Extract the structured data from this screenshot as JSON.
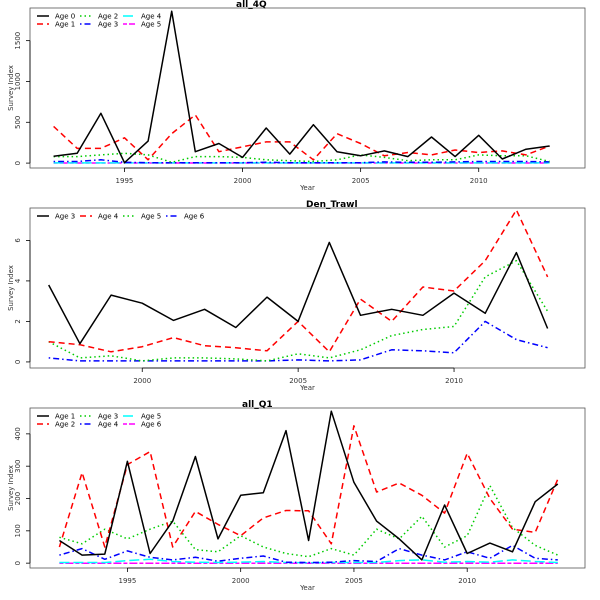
{
  "chart_data": [
    {
      "type": "line",
      "title": "all_4Q",
      "xlabel": "Year",
      "ylabel": "Survey Index",
      "xlim": [
        1991,
        2014.5
      ],
      "ylim": [
        -60,
        1900
      ],
      "xticks": [
        1995,
        2000,
        2005,
        2010
      ],
      "yticks": [
        0,
        500,
        1000,
        1500
      ],
      "legend": "top-left",
      "x": [
        1992,
        1993,
        1994,
        1995,
        1996,
        1997,
        1998,
        1999,
        2000,
        2001,
        2002,
        2003,
        2004,
        2005,
        2006,
        2007,
        2008,
        2009,
        2010,
        2011,
        2012,
        2013
      ],
      "series": [
        {
          "name": "Age 0",
          "color": "#000000",
          "dash": "solid",
          "values": [
            85,
            120,
            610,
            5,
            270,
            1860,
            140,
            240,
            70,
            430,
            110,
            470,
            140,
            90,
            150,
            80,
            320,
            80,
            340,
            50,
            170,
            210
          ]
        },
        {
          "name": "Age 1",
          "color": "#ff0000",
          "dash": "dashed",
          "values": [
            450,
            180,
            180,
            310,
            40,
            360,
            590,
            140,
            200,
            260,
            260,
            40,
            360,
            240,
            90,
            130,
            100,
            160,
            130,
            150,
            100,
            210
          ]
        },
        {
          "name": "Age 2",
          "color": "#00cc00",
          "dash": "dotted",
          "values": [
            80,
            80,
            100,
            120,
            100,
            10,
            80,
            80,
            70,
            40,
            30,
            20,
            40,
            100,
            70,
            30,
            40,
            40,
            100,
            90,
            90,
            20
          ]
        },
        {
          "name": "Age 3",
          "color": "#0000ff",
          "dash": "dotdash",
          "values": [
            20,
            20,
            40,
            10,
            5,
            5,
            5,
            5,
            5,
            10,
            5,
            5,
            5,
            5,
            15,
            10,
            10,
            15,
            20,
            20,
            20,
            15
          ]
        },
        {
          "name": "Age 4",
          "color": "#00ffff",
          "dash": "longdash",
          "values": [
            3,
            3,
            3,
            3,
            2,
            2,
            2,
            2,
            2,
            3,
            2,
            2,
            2,
            2,
            3,
            3,
            3,
            3,
            3,
            3,
            3,
            3
          ]
        },
        {
          "name": "Age 5",
          "color": "#ff00ff",
          "dash": "twodash",
          "values": [
            1,
            1,
            1,
            1,
            1,
            1,
            1,
            1,
            1,
            1,
            1,
            1,
            1,
            1,
            1,
            1,
            1,
            1,
            1,
            1,
            1,
            1
          ]
        }
      ]
    },
    {
      "type": "line",
      "title": "Den_Trawl",
      "xlabel": "Year",
      "ylabel": "Survey Index",
      "xlim": [
        1996.4,
        2014.2
      ],
      "ylim": [
        -0.3,
        7.6
      ],
      "xticks": [
        2000,
        2005,
        2010
      ],
      "yticks": [
        0,
        2,
        4,
        6
      ],
      "legend": "top-left",
      "x": [
        1997,
        1998,
        1999,
        2000,
        2001,
        2002,
        2003,
        2004,
        2005,
        2006,
        2007,
        2008,
        2009,
        2010,
        2011,
        2012,
        2013
      ],
      "series": [
        {
          "name": "Age 3",
          "color": "#000000",
          "dash": "solid",
          "values": [
            3.8,
            0.9,
            3.3,
            2.9,
            2.05,
            2.6,
            1.7,
            3.2,
            2.0,
            5.9,
            2.3,
            2.6,
            2.3,
            3.4,
            2.4,
            5.4,
            1.65
          ]
        },
        {
          "name": "Age 4",
          "color": "#ff0000",
          "dash": "dashed",
          "values": [
            1.0,
            0.85,
            0.5,
            0.75,
            1.2,
            0.8,
            0.7,
            0.55,
            2.0,
            0.5,
            3.1,
            2.0,
            3.7,
            3.5,
            5.0,
            7.5,
            4.2
          ]
        },
        {
          "name": "Age 5",
          "color": "#00cc00",
          "dash": "dotted",
          "values": [
            1.0,
            0.2,
            0.3,
            0.05,
            0.2,
            0.2,
            0.15,
            0.05,
            0.4,
            0.2,
            0.6,
            1.3,
            1.6,
            1.75,
            4.2,
            5.0,
            2.5
          ]
        },
        {
          "name": "Age 6",
          "color": "#0000ff",
          "dash": "dotdash",
          "values": [
            0.2,
            0.05,
            0.05,
            0.05,
            0.05,
            0.05,
            0.05,
            0.05,
            0.1,
            0.05,
            0.1,
            0.6,
            0.55,
            0.45,
            2.0,
            1.1,
            0.7
          ]
        }
      ]
    },
    {
      "type": "line",
      "title": "all_Q1",
      "xlabel": "Year",
      "ylabel": "Survey Index",
      "xlim": [
        1990.7,
        2015.2
      ],
      "ylim": [
        -15,
        480
      ],
      "xticks": [
        1995,
        2000,
        2005,
        2010
      ],
      "yticks": [
        0,
        100,
        200,
        300,
        400
      ],
      "legend": "top-left",
      "x": [
        1992,
        1993,
        1994,
        1995,
        1996,
        1997,
        1998,
        1999,
        2000,
        2001,
        2002,
        2003,
        2004,
        2005,
        2006,
        2007,
        2008,
        2009,
        2010,
        2011,
        2012,
        2013,
        2014
      ],
      "series": [
        {
          "name": "Age 1",
          "color": "#000000",
          "dash": "solid",
          "values": [
            70,
            25,
            28,
            315,
            30,
            130,
            330,
            75,
            210,
            218,
            410,
            70,
            470,
            250,
            130,
            75,
            10,
            180,
            30,
            62,
            35,
            190,
            245
          ]
        },
        {
          "name": "Age 2",
          "color": "#ff0000",
          "dash": "dashed",
          "values": [
            50,
            280,
            50,
            305,
            345,
            50,
            160,
            120,
            85,
            140,
            163,
            162,
            60,
            425,
            220,
            248,
            210,
            155,
            340,
            200,
            105,
            95,
            260
          ]
        },
        {
          "name": "Age 3",
          "color": "#00cc00",
          "dash": "dotted",
          "values": [
            80,
            60,
            105,
            75,
            105,
            130,
            42,
            35,
            85,
            50,
            30,
            20,
            45,
            25,
            105,
            75,
            145,
            50,
            85,
            240,
            110,
            55,
            25
          ]
        },
        {
          "name": "Age 4",
          "color": "#0000ff",
          "dash": "dotdash",
          "values": [
            25,
            45,
            12,
            38,
            18,
            10,
            18,
            6,
            15,
            22,
            3,
            2,
            3,
            8,
            5,
            45,
            25,
            10,
            35,
            15,
            55,
            15,
            10
          ]
        },
        {
          "name": "Age 5",
          "color": "#00ffff",
          "dash": "longdash",
          "values": [
            2,
            2,
            2,
            8,
            12,
            5,
            3,
            2,
            3,
            5,
            2,
            1,
            2,
            2,
            2,
            8,
            10,
            3,
            5,
            3,
            10,
            5,
            2
          ]
        },
        {
          "name": "Age 6",
          "color": "#ff00ff",
          "dash": "twodash",
          "values": [
            0,
            0,
            0,
            0,
            0,
            0,
            0,
            0,
            0,
            0,
            0,
            0,
            0,
            0,
            0,
            0,
            0,
            0,
            0,
            0,
            0,
            0,
            0
          ]
        }
      ]
    }
  ]
}
